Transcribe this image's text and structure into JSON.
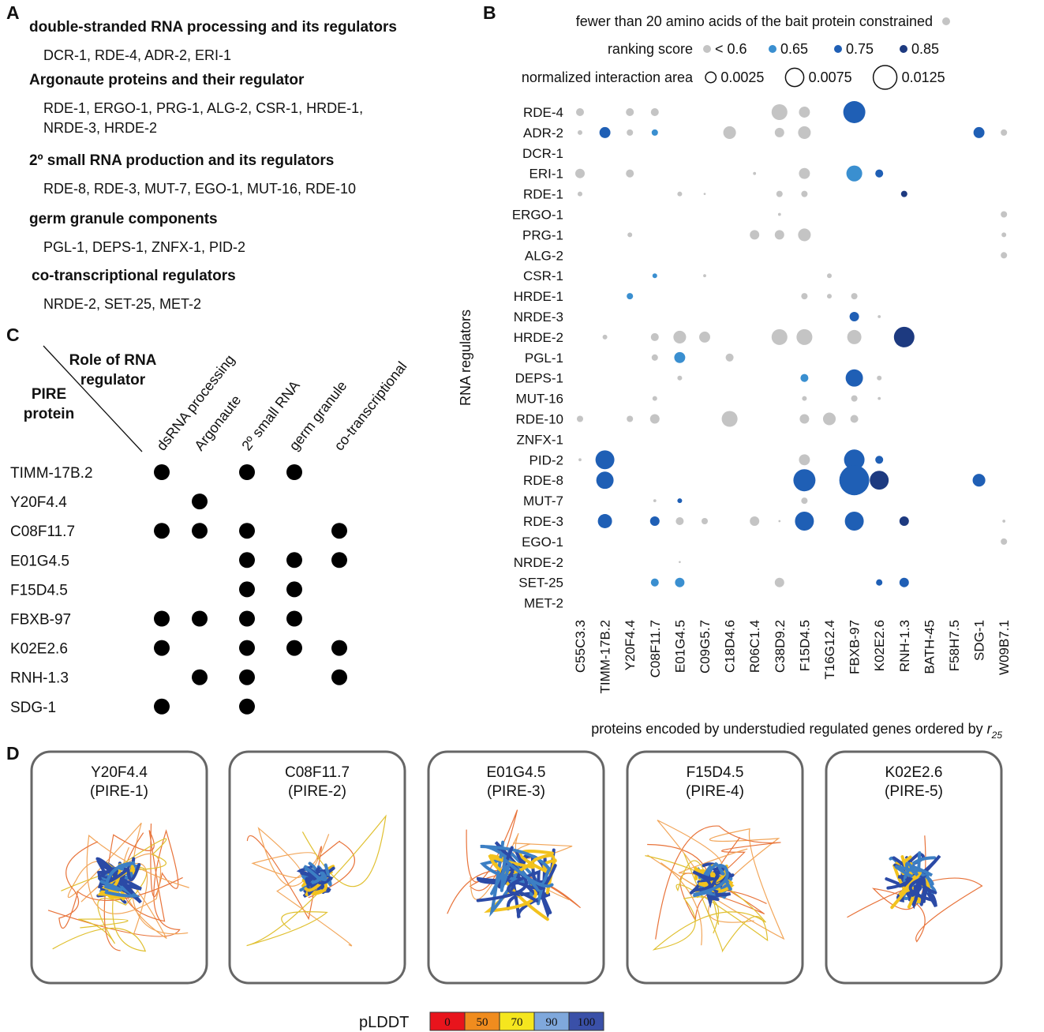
{
  "panel_labels": [
    "A",
    "B",
    "C",
    "D"
  ],
  "panel_a": {
    "groups": [
      {
        "heading": "double-stranded RNA processing and its regulators",
        "lines": [
          "DCR-1, RDE-4, ADR-2, ERI-1"
        ]
      },
      {
        "heading": "Argonaute proteins and their regulator",
        "lines": [
          "RDE-1, ERGO-1, PRG-1, ALG-2, CSR-1, HRDE-1,",
          "NRDE-3, HRDE-2"
        ]
      },
      {
        "heading": "2º small RNA production and its regulators",
        "lines": [
          "RDE-8, RDE-3, MUT-7, EGO-1, MUT-16, RDE-10"
        ]
      },
      {
        "heading": "germ granule components",
        "lines": [
          "PGL-1, DEPS-1, ZNFX-1, PID-2"
        ]
      },
      {
        "heading": "co-transcriptional regulators",
        "lines": [
          "NRDE-2, SET-25, MET-2"
        ]
      }
    ]
  },
  "chart_data": {
    "type": "bubble",
    "legend_note": "fewer than 20 amino acids of the bait protein constrained",
    "color_legend_title": "ranking score",
    "size_legend_title": "normalized interaction area",
    "size_legend": [
      0.0025,
      0.0075,
      0.0125
    ],
    "ylabel": "RNA regulators",
    "xlabel": "proteins encoded by understudied regulated genes ordered by",
    "xlabel_symbol": "r",
    "xlabel_subscript": "25",
    "x_categories": [
      "C55C3.3",
      "TIMM-17B.2",
      "Y20F4.4",
      "C08F11.7",
      "E01G4.5",
      "C09G5.7",
      "C18D4.6",
      "R06C1.4",
      "C38D9.2",
      "F15D4.5",
      "T16G12.4",
      "FBXB-97",
      "K02E2.6",
      "RNH-1.3",
      "BATH-45",
      "F58H7.5",
      "SDG-1",
      "W09B7.1"
    ],
    "y_categories": [
      "RDE-4",
      "ADR-2",
      "DCR-1",
      "ERI-1",
      "RDE-1",
      "ERGO-1",
      "PRG-1",
      "ALG-2",
      "CSR-1",
      "HRDE-1",
      "NRDE-3",
      "HRDE-2",
      "PGL-1",
      "DEPS-1",
      "MUT-16",
      "RDE-10",
      "ZNFX-1",
      "PID-2",
      "RDE-8",
      "MUT-7",
      "RDE-3",
      "EGO-1",
      "NRDE-2",
      "SET-25",
      "MET-2"
    ],
    "series": [
      {
        "name": "< 0.6",
        "color": "#c4c4c4",
        "points": [
          {
            "x": "C55C3.3",
            "y": "RDE-4",
            "size": 0.0014
          },
          {
            "x": "Y20F4.4",
            "y": "RDE-4",
            "size": 0.0014
          },
          {
            "x": "C08F11.7",
            "y": "RDE-4",
            "size": 0.0014
          },
          {
            "x": "C38D9.2",
            "y": "RDE-4",
            "size": 0.0056
          },
          {
            "x": "F15D4.5",
            "y": "RDE-4",
            "size": 0.0027
          },
          {
            "x": "C55C3.3",
            "y": "ADR-2",
            "size": 0.0005
          },
          {
            "x": "Y20F4.4",
            "y": "ADR-2",
            "size": 0.0009
          },
          {
            "x": "C18D4.6",
            "y": "ADR-2",
            "size": 0.0036
          },
          {
            "x": "C38D9.2",
            "y": "ADR-2",
            "size": 0.002
          },
          {
            "x": "F15D4.5",
            "y": "ADR-2",
            "size": 0.0036
          },
          {
            "x": "W09B7.1",
            "y": "ADR-2",
            "size": 0.0009
          },
          {
            "x": "C55C3.3",
            "y": "ERI-1",
            "size": 0.002
          },
          {
            "x": "Y20F4.4",
            "y": "ERI-1",
            "size": 0.0014
          },
          {
            "x": "R06C1.4",
            "y": "ERI-1",
            "size": 0.0002
          },
          {
            "x": "F15D4.5",
            "y": "ERI-1",
            "size": 0.0027
          },
          {
            "x": "C55C3.3",
            "y": "RDE-1",
            "size": 0.0005
          },
          {
            "x": "E01G4.5",
            "y": "RDE-1",
            "size": 0.0005
          },
          {
            "x": "C09G5.7",
            "y": "RDE-1",
            "size": 0.0001
          },
          {
            "x": "C38D9.2",
            "y": "RDE-1",
            "size": 0.0009
          },
          {
            "x": "F15D4.5",
            "y": "RDE-1",
            "size": 0.0009
          },
          {
            "x": "C38D9.2",
            "y": "ERGO-1",
            "size": 0.0002
          },
          {
            "x": "W09B7.1",
            "y": "ERGO-1",
            "size": 0.0009
          },
          {
            "x": "Y20F4.4",
            "y": "PRG-1",
            "size": 0.0005
          },
          {
            "x": "R06C1.4",
            "y": "PRG-1",
            "size": 0.002
          },
          {
            "x": "C38D9.2",
            "y": "PRG-1",
            "size": 0.002
          },
          {
            "x": "F15D4.5",
            "y": "PRG-1",
            "size": 0.0036
          },
          {
            "x": "W09B7.1",
            "y": "PRG-1",
            "size": 0.0005
          },
          {
            "x": "W09B7.1",
            "y": "ALG-2",
            "size": 0.0009
          },
          {
            "x": "C09G5.7",
            "y": "CSR-1",
            "size": 0.0002
          },
          {
            "x": "T16G12.4",
            "y": "CSR-1",
            "size": 0.0005
          },
          {
            "x": "F15D4.5",
            "y": "HRDE-1",
            "size": 0.0009
          },
          {
            "x": "T16G12.4",
            "y": "HRDE-1",
            "size": 0.0005
          },
          {
            "x": "FBXB-97",
            "y": "HRDE-1",
            "size": 0.0009
          },
          {
            "x": "K02E2.6",
            "y": "NRDE-3",
            "size": 0.0002
          },
          {
            "x": "TIMM-17B.2",
            "y": "HRDE-2",
            "size": 0.0005
          },
          {
            "x": "C08F11.7",
            "y": "HRDE-2",
            "size": 0.0014
          },
          {
            "x": "E01G4.5",
            "y": "HRDE-2",
            "size": 0.0036
          },
          {
            "x": "C09G5.7",
            "y": "HRDE-2",
            "size": 0.0027
          },
          {
            "x": "C38D9.2",
            "y": "HRDE-2",
            "size": 0.0056
          },
          {
            "x": "F15D4.5",
            "y": "HRDE-2",
            "size": 0.0056
          },
          {
            "x": "FBXB-97",
            "y": "HRDE-2",
            "size": 0.0045
          },
          {
            "x": "C08F11.7",
            "y": "PGL-1",
            "size": 0.0009
          },
          {
            "x": "C18D4.6",
            "y": "PGL-1",
            "size": 0.0014
          },
          {
            "x": "E01G4.5",
            "y": "DEPS-1",
            "size": 0.0005
          },
          {
            "x": "K02E2.6",
            "y": "DEPS-1",
            "size": 0.0005
          },
          {
            "x": "C08F11.7",
            "y": "MUT-16",
            "size": 0.0005
          },
          {
            "x": "F15D4.5",
            "y": "MUT-16",
            "size": 0.0005
          },
          {
            "x": "FBXB-97",
            "y": "MUT-16",
            "size": 0.0009
          },
          {
            "x": "K02E2.6",
            "y": "MUT-16",
            "size": 0.0002
          },
          {
            "x": "C55C3.3",
            "y": "RDE-10",
            "size": 0.0009
          },
          {
            "x": "Y20F4.4",
            "y": "RDE-10",
            "size": 0.0009
          },
          {
            "x": "C08F11.7",
            "y": "RDE-10",
            "size": 0.002
          },
          {
            "x": "C18D4.6",
            "y": "RDE-10",
            "size": 0.0056
          },
          {
            "x": "F15D4.5",
            "y": "RDE-10",
            "size": 0.002
          },
          {
            "x": "T16G12.4",
            "y": "RDE-10",
            "size": 0.0036
          },
          {
            "x": "FBXB-97",
            "y": "RDE-10",
            "size": 0.0014
          },
          {
            "x": "C55C3.3",
            "y": "PID-2",
            "size": 0.0002
          },
          {
            "x": "F15D4.5",
            "y": "PID-2",
            "size": 0.0027
          },
          {
            "x": "C08F11.7",
            "y": "MUT-7",
            "size": 0.0002
          },
          {
            "x": "F15D4.5",
            "y": "MUT-7",
            "size": 0.0009
          },
          {
            "x": "E01G4.5",
            "y": "RDE-3",
            "size": 0.0014
          },
          {
            "x": "C09G5.7",
            "y": "RDE-3",
            "size": 0.0009
          },
          {
            "x": "R06C1.4",
            "y": "RDE-3",
            "size": 0.002
          },
          {
            "x": "C38D9.2",
            "y": "RDE-3",
            "size": 0.0001
          },
          {
            "x": "W09B7.1",
            "y": "RDE-3",
            "size": 0.0002
          },
          {
            "x": "W09B7.1",
            "y": "EGO-1",
            "size": 0.0009
          },
          {
            "x": "E01G4.5",
            "y": "NRDE-2",
            "size": 0.0001
          },
          {
            "x": "C38D9.2",
            "y": "SET-25",
            "size": 0.002
          }
        ]
      },
      {
        "name": "0.65",
        "color": "#3a8fd0",
        "points": [
          {
            "x": "C08F11.7",
            "y": "ADR-2",
            "size": 0.0009
          },
          {
            "x": "FBXB-97",
            "y": "ERI-1",
            "size": 0.0056
          },
          {
            "x": "C08F11.7",
            "y": "CSR-1",
            "size": 0.0005
          },
          {
            "x": "Y20F4.4",
            "y": "HRDE-1",
            "size": 0.0009
          },
          {
            "x": "E01G4.5",
            "y": "PGL-1",
            "size": 0.0027
          },
          {
            "x": "F15D4.5",
            "y": "DEPS-1",
            "size": 0.0014
          },
          {
            "x": "C08F11.7",
            "y": "SET-25",
            "size": 0.0014
          },
          {
            "x": "E01G4.5",
            "y": "SET-25",
            "size": 0.002
          }
        ]
      },
      {
        "name": "0.75",
        "color": "#1f5fb5",
        "points": [
          {
            "x": "FBXB-97",
            "y": "RDE-4",
            "size": 0.0109
          },
          {
            "x": "TIMM-17B.2",
            "y": "ADR-2",
            "size": 0.0027
          },
          {
            "x": "SDG-1",
            "y": "ADR-2",
            "size": 0.0027
          },
          {
            "x": "K02E2.6",
            "y": "ERI-1",
            "size": 0.0014
          },
          {
            "x": "FBXB-97",
            "y": "NRDE-3",
            "size": 0.002
          },
          {
            "x": "FBXB-97",
            "y": "DEPS-1",
            "size": 0.0067
          },
          {
            "x": "TIMM-17B.2",
            "y": "PID-2",
            "size": 0.008
          },
          {
            "x": "FBXB-97",
            "y": "PID-2",
            "size": 0.0094
          },
          {
            "x": "K02E2.6",
            "y": "PID-2",
            "size": 0.0014
          },
          {
            "x": "TIMM-17B.2",
            "y": "RDE-8",
            "size": 0.0067
          },
          {
            "x": "F15D4.5",
            "y": "RDE-8",
            "size": 0.0109
          },
          {
            "x": "FBXB-97",
            "y": "RDE-8",
            "size": 0.0201
          },
          {
            "x": "SDG-1",
            "y": "RDE-8",
            "size": 0.0036
          },
          {
            "x": "E01G4.5",
            "y": "MUT-7",
            "size": 0.0005
          },
          {
            "x": "TIMM-17B.2",
            "y": "RDE-3",
            "size": 0.0045
          },
          {
            "x": "C08F11.7",
            "y": "RDE-3",
            "size": 0.002
          },
          {
            "x": "F15D4.5",
            "y": "RDE-3",
            "size": 0.008
          },
          {
            "x": "FBXB-97",
            "y": "RDE-3",
            "size": 0.008
          },
          {
            "x": "K02E2.6",
            "y": "SET-25",
            "size": 0.0009
          },
          {
            "x": "RNH-1.3",
            "y": "SET-25",
            "size": 0.002
          }
        ]
      },
      {
        "name": "0.85",
        "color": "#1d3a80",
        "points": [
          {
            "x": "RNH-1.3",
            "y": "RDE-1",
            "size": 0.0009
          },
          {
            "x": "RNH-1.3",
            "y": "HRDE-2",
            "size": 0.0094
          },
          {
            "x": "K02E2.6",
            "y": "RDE-8",
            "size": 0.008
          },
          {
            "x": "RNH-1.3",
            "y": "RDE-3",
            "size": 0.002
          }
        ]
      }
    ]
  },
  "panel_c": {
    "corner_top": [
      "Role of RNA",
      "regulator"
    ],
    "corner_left": [
      "PIRE",
      "protein"
    ],
    "columns": [
      "dsRNA processing",
      "Argonaute",
      "2º small RNA",
      "germ granule",
      "co-transcriptional"
    ],
    "rows": [
      {
        "name": "TIMM-17B.2",
        "roles": [
          true,
          false,
          true,
          true,
          false
        ]
      },
      {
        "name": "Y20F4.4",
        "roles": [
          false,
          true,
          false,
          false,
          false
        ]
      },
      {
        "name": "C08F11.7",
        "roles": [
          true,
          true,
          true,
          false,
          true
        ]
      },
      {
        "name": "E01G4.5",
        "roles": [
          false,
          false,
          true,
          true,
          true
        ]
      },
      {
        "name": "F15D4.5",
        "roles": [
          false,
          false,
          true,
          true,
          false
        ]
      },
      {
        "name": "FBXB-97",
        "roles": [
          true,
          true,
          true,
          true,
          false
        ]
      },
      {
        "name": "K02E2.6",
        "roles": [
          true,
          false,
          true,
          true,
          true
        ]
      },
      {
        "name": "RNH-1.3",
        "roles": [
          false,
          true,
          true,
          false,
          true
        ]
      },
      {
        "name": "SDG-1",
        "roles": [
          true,
          false,
          true,
          false,
          false
        ]
      }
    ]
  },
  "panel_d": {
    "structures": [
      {
        "name": "Y20F4.4",
        "alias": "(PIRE-1)"
      },
      {
        "name": "C08F11.7",
        "alias": "(PIRE-2)"
      },
      {
        "name": "E01G4.5",
        "alias": "(PIRE-3)"
      },
      {
        "name": "F15D4.5",
        "alias": "(PIRE-4)"
      },
      {
        "name": "K02E2.6",
        "alias": "(PIRE-5)"
      }
    ],
    "colorbar": {
      "title": "pLDDT",
      "ticks": [
        0,
        50,
        70,
        90,
        100
      ],
      "colors": [
        "#e8141c",
        "#f08c1e",
        "#f5e61e",
        "#7fa8dc",
        "#3a50a8"
      ]
    }
  }
}
